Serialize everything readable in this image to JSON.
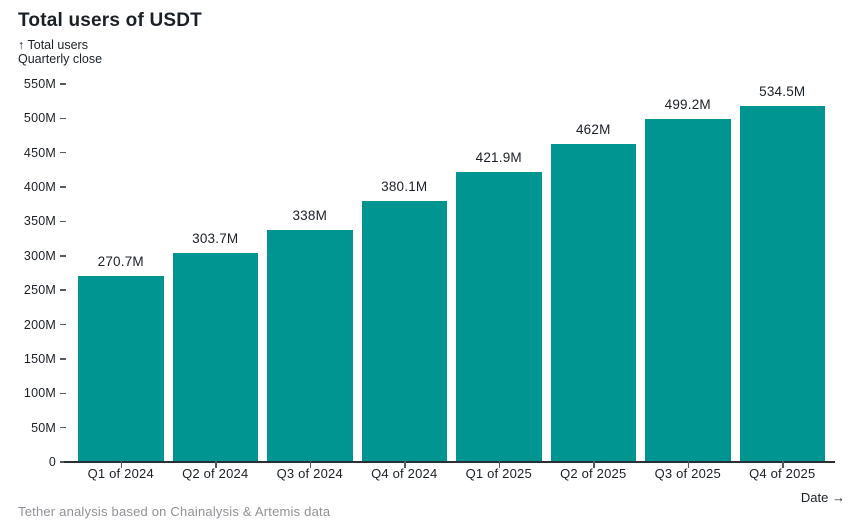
{
  "header": {
    "title": "Total users of USDT",
    "subtitle_line1": "↑ Total users",
    "subtitle_line2": "Quarterly close"
  },
  "footer": {
    "source_note": "Tether analysis based on Chainalysis & Artemis data"
  },
  "x_axis_caption": "Date →",
  "colors": {
    "bar": "#009590",
    "text": "#1b2027",
    "footer_text": "#8f9296",
    "axis": "#2a2e36",
    "tick": "#555a61"
  },
  "chart_data": {
    "type": "bar",
    "title": "Total users of USDT",
    "ylabel": "Total users, Quarterly close",
    "xlabel": "Date",
    "categories": [
      "Q1 of 2024",
      "Q2 of 2024",
      "Q3 of 2024",
      "Q4 of 2024",
      "Q1 of 2025",
      "Q2 of 2025",
      "Q3 of 2025",
      "Q4 of 2025"
    ],
    "values": [
      270.7,
      303.7,
      338,
      380.1,
      421.9,
      462,
      499.2,
      534.5
    ],
    "value_labels": [
      "270.7M",
      "303.7M",
      "338M",
      "380.1M",
      "421.9M",
      "462M",
      "499.2M",
      "534.5M"
    ],
    "unit": "M",
    "ylim": [
      0,
      550
    ],
    "y_tick_step": 50,
    "y_tick_labels": [
      "0",
      "50M",
      "100M",
      "150M",
      "200M",
      "250M",
      "300M",
      "350M",
      "400M",
      "450M",
      "500M",
      "550M"
    ],
    "grid": false,
    "legend": "none",
    "bar_color": "#009590"
  }
}
